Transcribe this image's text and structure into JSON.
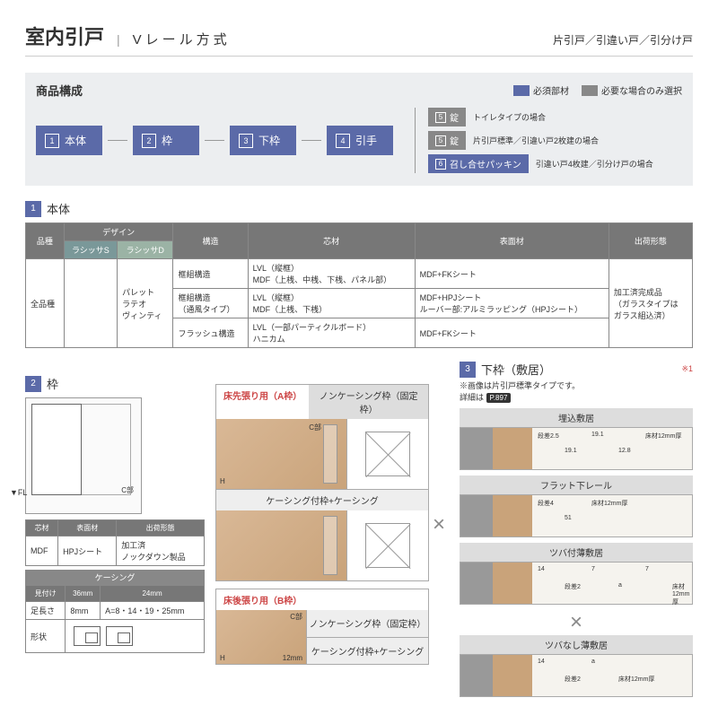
{
  "header": {
    "title": "室内引戸",
    "subtitle": "Vレール方式",
    "right": "片引戸／引違い戸／引分け戸"
  },
  "composition": {
    "title": "商品構成",
    "legend_required": "必須部材",
    "legend_optional": "必要な場合のみ選択",
    "steps": [
      {
        "n": "1",
        "label": "本体"
      },
      {
        "n": "2",
        "label": "枠"
      },
      {
        "n": "3",
        "label": "下枠"
      },
      {
        "n": "4",
        "label": "引手"
      }
    ],
    "branches": [
      {
        "n": "5",
        "label": "錠",
        "cls": "mini-gray",
        "note": "トイレタイプの場合"
      },
      {
        "n": "5",
        "label": "錠",
        "cls": "mini-gray",
        "note": "片引戸標準／引違い戸2枚建の場合"
      },
      {
        "n": "6",
        "label": "召し合せパッキン",
        "cls": "mini-blue",
        "note": "引違い戸4枚建／引分け戸の場合"
      }
    ]
  },
  "sec1": {
    "n": "1",
    "title": "本体",
    "headers": {
      "hinshu": "品種",
      "design": "デザイン",
      "kouzou": "構造",
      "shinzai": "芯材",
      "hyoumen": "表面材",
      "shukka": "出荷形態"
    },
    "design_sub": {
      "s": "ラシッサS",
      "d": "ラシッサD"
    },
    "hinshu_val": "全品種",
    "design_vals": "パレット\nラテオ\nヴィンティ",
    "rows": [
      {
        "kouzou": "框組構造",
        "shinzai": "LVL（縦框）\nMDF（上桟、中桟、下桟、パネル部）",
        "hyoumen": "MDF+FKシート"
      },
      {
        "kouzou": "框組構造\n（通風タイプ）",
        "shinzai": "LVL（縦框）\nMDF（上桟、下桟）",
        "hyoumen": "MDF+HPJシート\nルーバー部:アルミラッピング（HPJシート）"
      },
      {
        "kouzou": "フラッシュ構造",
        "shinzai": "LVL（一部パーティクルボード）\nハニカム",
        "hyoumen": "MDF+FKシート"
      }
    ],
    "shukka_val": "加工済完成品\n（ガラスタイプは\nガラス組込済）"
  },
  "sec2": {
    "n": "2",
    "title": "枠",
    "fl": "▼FL",
    "cpart": "C部",
    "t1": {
      "h": [
        "芯材",
        "表面材",
        "出荷形態"
      ],
      "r": [
        "MDF",
        "HPJシート",
        "加工済\nノックダウン製品"
      ]
    },
    "casing": "ケーシング",
    "t2": {
      "h": [
        "見付け",
        "36mm",
        "24mm"
      ],
      "r1": [
        "足長さ",
        "8mm",
        "A=8・14・19・25mm"
      ],
      "r2": "形状"
    },
    "a_type": "床先張り用（A枠）",
    "a_opt1": "ノンケーシング枠（固定枠）",
    "a_opt2": "ケーシング付枠+ケーシング",
    "b_type": "床後張り用（B枠）",
    "b_opt1": "ノンケーシング枠（固定枠）",
    "b_opt2": "ケーシング付枠+ケーシング",
    "h_label": "H",
    "c_label": "C部",
    "dim12": "12mm"
  },
  "sec3": {
    "n": "3",
    "title": "下枠（敷居）",
    "note_red": "※1",
    "note": "※画像は片引戸標準タイプです。",
    "note2": "詳細は",
    "pill": "P.897",
    "sills": [
      {
        "name": "埋込敷居",
        "dims": [
          "段差2.5",
          "19.1",
          "19.1",
          "12.8",
          "床材12mm厚"
        ]
      },
      {
        "name": "フラット下レール",
        "dims": [
          "段差4",
          "51",
          "床材12mm厚"
        ]
      },
      {
        "name": "ツバ付薄敷居",
        "dims": [
          "14",
          "段差2",
          "7",
          "a",
          "7",
          "床材12mm厚"
        ]
      },
      {
        "name": "ツバなし薄敷居",
        "dims": [
          "14",
          "段差2",
          "a",
          "床材12mm厚"
        ]
      }
    ]
  },
  "colors": {
    "blue": "#5b6aa8",
    "gray": "#888",
    "bg_panel": "#eceef0",
    "teal": "#7a9899"
  }
}
